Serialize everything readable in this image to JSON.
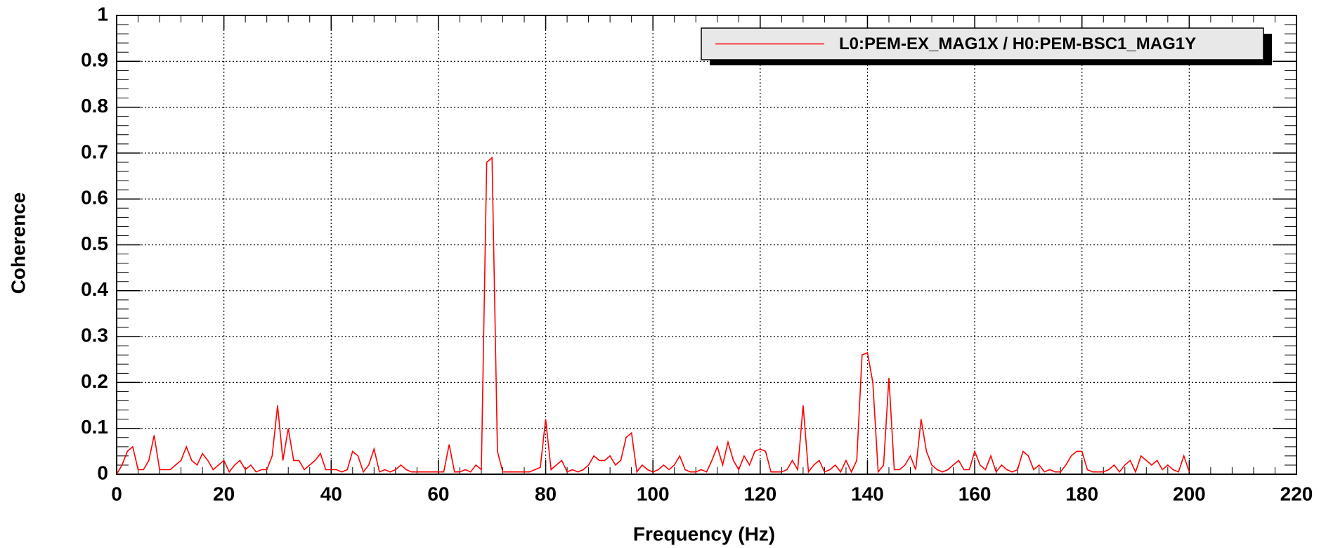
{
  "chart_data": {
    "type": "line",
    "xlabel": "Frequency (Hz)",
    "ylabel": "Coherence",
    "x": [
      0,
      1,
      2,
      3,
      4,
      5,
      6,
      7,
      8,
      9,
      10,
      11,
      12,
      13,
      14,
      15,
      16,
      17,
      18,
      19,
      20,
      21,
      22,
      23,
      24,
      25,
      26,
      27,
      28,
      29,
      30,
      31,
      32,
      33,
      34,
      35,
      36,
      37,
      38,
      39,
      40,
      41,
      42,
      43,
      44,
      45,
      46,
      47,
      48,
      49,
      50,
      51,
      52,
      53,
      54,
      55,
      56,
      57,
      58,
      59,
      60,
      61,
      62,
      63,
      64,
      65,
      66,
      67,
      68,
      69,
      70,
      71,
      72,
      73,
      74,
      75,
      76,
      77,
      78,
      79,
      80,
      81,
      82,
      83,
      84,
      85,
      86,
      87,
      88,
      89,
      90,
      91,
      92,
      93,
      94,
      95,
      96,
      97,
      98,
      99,
      100,
      101,
      102,
      103,
      104,
      105,
      106,
      107,
      108,
      109,
      110,
      111,
      112,
      113,
      114,
      115,
      116,
      117,
      118,
      119,
      120,
      121,
      122,
      123,
      124,
      125,
      126,
      127,
      128,
      129,
      130,
      131,
      132,
      133,
      134,
      135,
      136,
      137,
      138,
      139,
      140,
      141,
      142,
      143,
      144,
      145,
      146,
      147,
      148,
      149,
      150,
      151,
      152,
      153,
      154,
      155,
      156,
      157,
      158,
      159,
      160,
      161,
      162,
      163,
      164,
      165,
      166,
      167,
      168,
      169,
      170,
      171,
      172,
      173,
      174,
      175,
      176,
      177,
      178,
      179,
      180,
      181,
      182,
      183,
      184,
      185,
      186,
      187,
      188,
      189,
      190,
      191,
      192,
      193,
      194,
      195,
      196,
      197,
      198,
      199,
      200
    ],
    "series": [
      {
        "name": "L0:PEM-EX_MAG1X / H0:PEM-BSC1_MAG1Y",
        "color": "#ff0000",
        "values": [
          0.0,
          0.02,
          0.05,
          0.06,
          0.01,
          0.01,
          0.03,
          0.085,
          0.01,
          0.01,
          0.01,
          0.02,
          0.03,
          0.06,
          0.03,
          0.02,
          0.045,
          0.03,
          0.01,
          0.02,
          0.03,
          0.005,
          0.02,
          0.03,
          0.01,
          0.02,
          0.005,
          0.01,
          0.01,
          0.04,
          0.15,
          0.03,
          0.1,
          0.03,
          0.03,
          0.01,
          0.02,
          0.03,
          0.045,
          0.01,
          0.01,
          0.01,
          0.005,
          0.01,
          0.05,
          0.04,
          0.005,
          0.02,
          0.055,
          0.005,
          0.01,
          0.005,
          0.01,
          0.02,
          0.01,
          0.005,
          0.005,
          0.005,
          0.005,
          0.005,
          0.005,
          0.005,
          0.065,
          0.005,
          0.005,
          0.01,
          0.005,
          0.02,
          0.01,
          0.68,
          0.69,
          0.05,
          0.005,
          0.005,
          0.005,
          0.005,
          0.005,
          0.005,
          0.01,
          0.015,
          0.12,
          0.01,
          0.02,
          0.03,
          0.005,
          0.01,
          0.005,
          0.01,
          0.02,
          0.04,
          0.03,
          0.03,
          0.04,
          0.02,
          0.03,
          0.08,
          0.09,
          0.005,
          0.02,
          0.01,
          0.005,
          0.01,
          0.02,
          0.01,
          0.02,
          0.04,
          0.01,
          0.005,
          0.005,
          0.01,
          0.005,
          0.03,
          0.06,
          0.02,
          0.07,
          0.03,
          0.01,
          0.04,
          0.02,
          0.05,
          0.055,
          0.05,
          0.005,
          0.005,
          0.005,
          0.01,
          0.03,
          0.01,
          0.15,
          0.005,
          0.02,
          0.03,
          0.005,
          0.01,
          0.02,
          0.005,
          0.03,
          0.005,
          0.03,
          0.26,
          0.265,
          0.2,
          0.005,
          0.02,
          0.21,
          0.01,
          0.01,
          0.02,
          0.04,
          0.01,
          0.12,
          0.05,
          0.02,
          0.01,
          0.005,
          0.01,
          0.02,
          0.03,
          0.01,
          0.01,
          0.05,
          0.02,
          0.01,
          0.04,
          0.005,
          0.02,
          0.01,
          0.005,
          0.01,
          0.05,
          0.04,
          0.01,
          0.02,
          0.005,
          0.01,
          0.005,
          0.005,
          0.02,
          0.04,
          0.05,
          0.05,
          0.01,
          0.005,
          0.005,
          0.005,
          0.01,
          0.02,
          0.005,
          0.02,
          0.03,
          0.005,
          0.04,
          0.03,
          0.02,
          0.03,
          0.01,
          0.02,
          0.01,
          0.005,
          0.04,
          0.005
        ]
      }
    ],
    "xlim": [
      0,
      220
    ],
    "xticks": [
      0,
      20,
      40,
      60,
      80,
      100,
      120,
      140,
      160,
      180,
      200,
      220
    ],
    "ylim": [
      0,
      1
    ],
    "yticks": [
      0,
      0.1,
      0.2,
      0.3,
      0.4,
      0.5,
      0.6,
      0.7,
      0.8,
      0.9,
      1
    ],
    "grid": true,
    "legend": "top-right"
  }
}
